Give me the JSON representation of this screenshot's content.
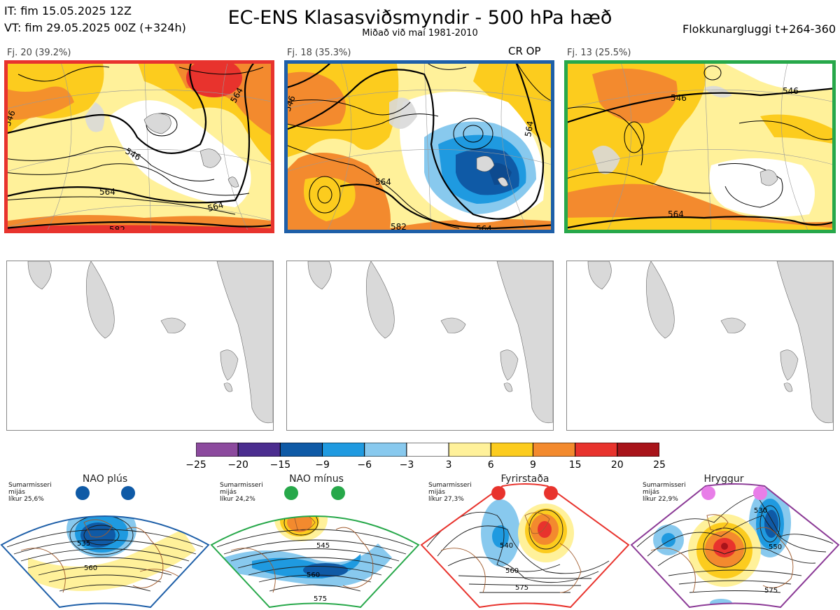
{
  "header": {
    "init_time": "IT: fim 15.05.2025 12Z",
    "valid_time": "VT: fim 29.05.2025 00Z  (+324h)",
    "title": "EC-ENS Klasasviðsmyndir - 500 hPa hæð",
    "subtitle": "Miðað við maí 1981-2010",
    "window": "Flokkunargluggi t+264-360"
  },
  "clusters": [
    {
      "label": "Fj. 20 (39.2%)",
      "members": 20,
      "percent": 39.2,
      "tag": "",
      "border_color": "#e8332d",
      "contour_labels": [
        "546",
        "546",
        "564",
        "564",
        "564",
        "582"
      ]
    },
    {
      "label": "Fj. 18 (35.3%)",
      "members": 18,
      "percent": 35.3,
      "tag": "CR OP",
      "border_color": "#1e5fa8",
      "contour_labels": [
        "546",
        "564",
        "564",
        "564",
        "582"
      ]
    },
    {
      "label": "Fj. 13 (25.5%)",
      "members": 13,
      "percent": 25.5,
      "tag": "",
      "border_color": "#27a84a",
      "contour_labels": [
        "546",
        "546",
        "564"
      ]
    }
  ],
  "colorbar": {
    "ticks": [
      "−25",
      "−20",
      "−15",
      "−9",
      "−6",
      "−3",
      "3",
      "6",
      "9",
      "15",
      "20",
      "25"
    ],
    "colors": [
      "#8c4a9e",
      "#4b2d8f",
      "#0f5aa6",
      "#1f9ae0",
      "#88c9ee",
      "#ffffff",
      "#fff19a",
      "#fccc1e",
      "#f38a2e",
      "#e8332d",
      "#a8141a"
    ]
  },
  "regimes": [
    {
      "name": "NAO plús",
      "note": "Sumarmisseri\nmijás\nlíkur 25,6%",
      "dot_color": "#0f5aa6",
      "frame_color": "#1e5fa8",
      "labels": [
        "535",
        "560"
      ]
    },
    {
      "name": "NAO mínus",
      "note": "Sumarmisseri\nmijás\nlíkur 24,2%",
      "dot_color": "#27a84a",
      "frame_color": "#27a84a",
      "labels": [
        "545",
        "560",
        "575"
      ]
    },
    {
      "name": "Fyrirstaða",
      "note": "Sumarmisseri\nmijás\nlíkur 27,3%",
      "dot_color": "#e8332d",
      "frame_color": "#e8332d",
      "labels": [
        "540",
        "560",
        "575"
      ]
    },
    {
      "name": "Hryggur",
      "note": "Sumarmisseri\nmijás\nlíkur 22,9%",
      "dot_color": "#e87ee8",
      "frame_color": "#8b3a96",
      "labels": [
        "530",
        "550",
        "575"
      ]
    }
  ]
}
